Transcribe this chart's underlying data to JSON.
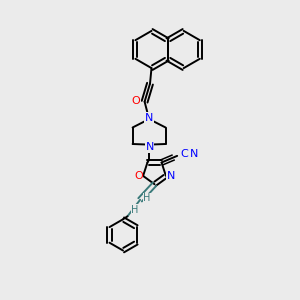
{
  "background_color": "#ebebeb",
  "bond_color": "#000000",
  "N_color": "#0000ff",
  "O_color": "#ff0000",
  "vinyl_color": "#3a7a7a",
  "lw": 1.4,
  "fig_w": 3.0,
  "fig_h": 3.0,
  "dpi": 100,
  "xlim": [
    0,
    10
  ],
  "ylim": [
    0,
    10
  ]
}
